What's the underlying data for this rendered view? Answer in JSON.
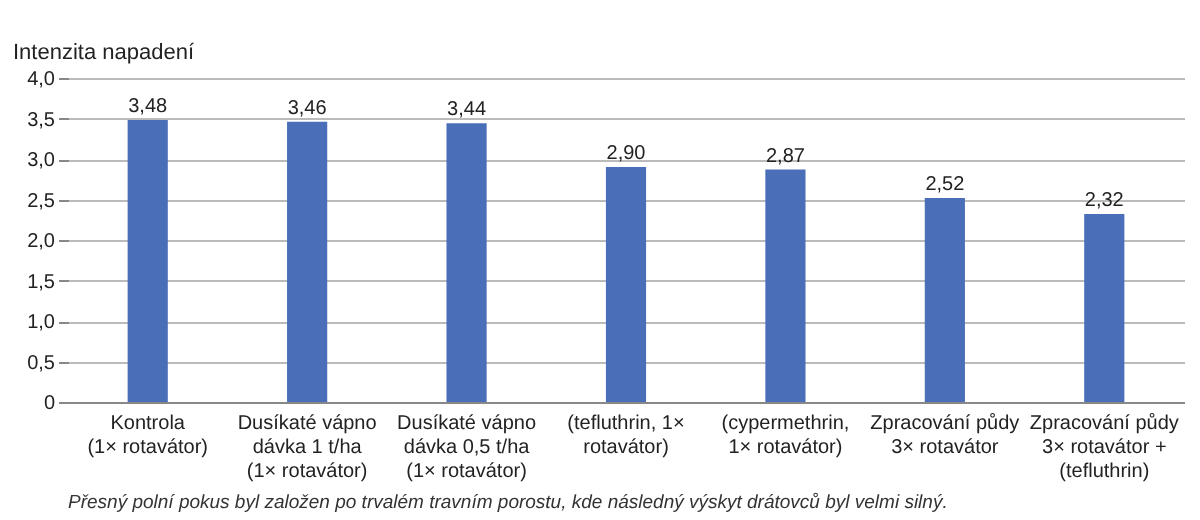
{
  "chart_data": {
    "type": "bar",
    "ylabel": "Intenzita napadení",
    "categories": [
      "Kontrola (1× rotavátor)",
      "Dusíkaté vápno dávka 1 t/ha (1× rotavátor)",
      "Dusíkaté vápno dávka 0,5 t/ha (1× rotavátor)",
      "(tefluthrin, 1× rotavátor)",
      "(cypermethrin, 1× rotavátor)",
      "Zpracování půdy 3× rotavátor",
      "Zpracování půdy 3× rotavátor + (tefluthrin)"
    ],
    "values": [
      3.48,
      3.46,
      3.44,
      2.9,
      2.87,
      2.52,
      2.32
    ],
    "value_labels": [
      "3,48",
      "3,46",
      "3,44",
      "2,90",
      "2,87",
      "2,52",
      "2,32"
    ],
    "color": "#4a6fb8",
    "ylim": [
      0,
      4
    ],
    "yticks": [
      {
        "value": 0,
        "label": "0"
      },
      {
        "value": 0.5,
        "label": "0,5"
      },
      {
        "value": 1,
        "label": "1,0"
      },
      {
        "value": 1.5,
        "label": "1,5"
      },
      {
        "value": 2,
        "label": "2,0"
      },
      {
        "value": 2.5,
        "label": "2,5"
      },
      {
        "value": 3,
        "label": "3,0"
      },
      {
        "value": 3.5,
        "label": "3,5"
      },
      {
        "value": 4,
        "label": "4,0"
      }
    ],
    "grid": "y",
    "annotations": [
      "Přesný polní pokus byl založen po trvalém travním porostu, kde následný výskyt drátovců byl velmi silný."
    ]
  }
}
